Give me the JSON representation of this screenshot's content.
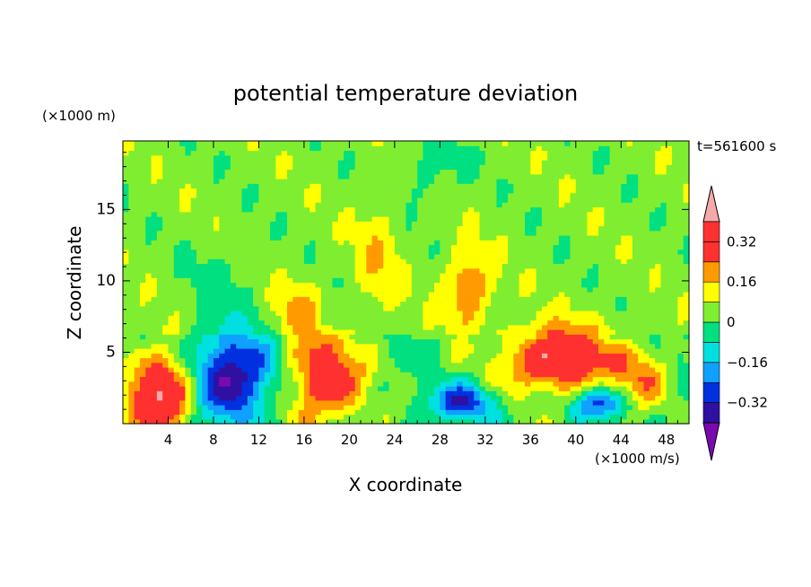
{
  "chart_data": {
    "type": "heatmap",
    "title": "potential temperature deviation",
    "xlabel": "X coordinate",
    "ylabel": "Z coordinate",
    "x_unit": "(×1000 m/s)",
    "y_unit": "(×1000 m)",
    "time_label": "t=561600 s",
    "xlim": [
      0,
      50
    ],
    "ylim": [
      0,
      19.8
    ],
    "x_ticks": [
      4,
      8,
      12,
      16,
      20,
      24,
      28,
      32,
      36,
      40,
      44,
      48
    ],
    "y_ticks": [
      5,
      10,
      15
    ],
    "colorbar": {
      "levels": [
        -0.4,
        -0.32,
        -0.24,
        -0.16,
        -0.08,
        0,
        0.08,
        0.16,
        0.24,
        0.32,
        0.4
      ],
      "tick_labels": [
        "0.32",
        "0.16",
        "0",
        "−0.16",
        "−0.32"
      ],
      "tick_values": [
        0.32,
        0.16,
        0,
        -0.16,
        -0.32
      ],
      "colors": [
        "#7a0ab0",
        "#3010a0",
        "#0030e0",
        "#10a0ff",
        "#00e0e0",
        "#00e080",
        "#80ee30",
        "#ffff00",
        "#ff9a00",
        "#ff3030",
        "#ff3030",
        "#f5aaaa"
      ]
    },
    "features": [
      {
        "x": 3.5,
        "z": 2.2,
        "rx": 3.0,
        "rz": 2.8,
        "v": 0.45
      },
      {
        "x": 17.8,
        "z": 3.2,
        "rx": 3.2,
        "rz": 3.2,
        "v": 0.36
      },
      {
        "x": 38.5,
        "z": 4.5,
        "rx": 4.5,
        "rz": 2.2,
        "v": 0.42
      },
      {
        "x": 9.5,
        "z": 3.2,
        "rx": 3.6,
        "rz": 3.0,
        "v": -0.42
      },
      {
        "x": 30.0,
        "z": 1.5,
        "rx": 2.8,
        "rz": 1.2,
        "v": -0.3
      },
      {
        "x": 42.0,
        "z": 1.5,
        "rx": 2.2,
        "rz": 1.0,
        "v": -0.28
      },
      {
        "x": 30.5,
        "z": 9.5,
        "rx": 2.0,
        "rz": 2.5,
        "v": 0.22
      },
      {
        "x": 15.5,
        "z": 8.0,
        "rx": 2.0,
        "rz": 2.0,
        "v": 0.12
      },
      {
        "x": 18.5,
        "z": 7.2,
        "rx": 1.8,
        "rz": 1.0,
        "v": -0.12
      },
      {
        "x": 27.0,
        "z": 18.0,
        "rx": 3.0,
        "rz": 2.5,
        "v": -0.08
      },
      {
        "x": 8.5,
        "z": 9.0,
        "rx": 3.0,
        "rz": 3.5,
        "v": -0.06
      },
      {
        "x": 22.5,
        "z": 11.5,
        "rx": 2.0,
        "rz": 4.0,
        "v": 0.1
      },
      {
        "x": 46.0,
        "z": 3.5,
        "rx": 2.5,
        "rz": 2.0,
        "v": 0.2
      }
    ]
  }
}
